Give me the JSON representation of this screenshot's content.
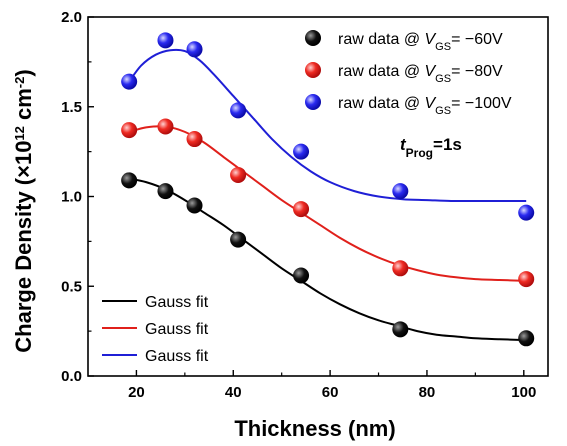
{
  "chart_data": {
    "type": "scatter",
    "title": "",
    "xlabel": "Thickness (nm)",
    "ylabel": "Charge Density (×10¹² cm⁻²)",
    "xlim": [
      10,
      105
    ],
    "ylim": [
      0.0,
      2.0
    ],
    "xticks": [
      "20",
      "40",
      "60",
      "80",
      "100"
    ],
    "yticks": [
      "0.0",
      "0.5",
      "1.0",
      "1.5",
      "2.0"
    ],
    "x": [
      18.5,
      26,
      32,
      41,
      54,
      74.5,
      100.5
    ],
    "series": [
      {
        "name": "raw data @ VGS= −60V",
        "kind": "scatter",
        "color": "#000000",
        "values": [
          1.09,
          1.03,
          0.95,
          0.76,
          0.56,
          0.26,
          0.21
        ]
      },
      {
        "name": "raw data @ VGS= −80V",
        "kind": "scatter",
        "color": "#e0201b",
        "values": [
          1.37,
          1.39,
          1.32,
          1.12,
          0.93,
          0.6,
          0.54
        ]
      },
      {
        "name": "raw data @ VGS= −100V",
        "kind": "scatter",
        "color": "#1f1fd6",
        "values": [
          1.64,
          1.87,
          1.82,
          1.48,
          1.25,
          1.03,
          0.91
        ]
      },
      {
        "name": "Gauss fit",
        "kind": "line",
        "color": "#000000",
        "x": [
          18.5,
          22,
          26,
          30,
          34,
          38,
          42,
          46,
          50,
          54,
          58,
          62,
          66,
          70,
          74,
          78,
          82,
          86,
          90,
          95,
          100.5
        ],
        "values": [
          1.1,
          1.08,
          1.04,
          0.98,
          0.91,
          0.84,
          0.76,
          0.68,
          0.6,
          0.53,
          0.46,
          0.4,
          0.35,
          0.31,
          0.28,
          0.25,
          0.23,
          0.22,
          0.21,
          0.205,
          0.2
        ]
      },
      {
        "name": "Gauss fit",
        "kind": "line",
        "color": "#e0201b",
        "x": [
          18.5,
          22,
          26,
          30,
          34,
          38,
          42,
          46,
          50,
          54,
          58,
          62,
          66,
          70,
          74,
          78,
          82,
          86,
          90,
          95,
          100.5
        ],
        "values": [
          1.36,
          1.385,
          1.39,
          1.36,
          1.3,
          1.22,
          1.14,
          1.06,
          0.98,
          0.91,
          0.84,
          0.77,
          0.71,
          0.66,
          0.62,
          0.59,
          0.565,
          0.55,
          0.54,
          0.535,
          0.53
        ]
      },
      {
        "name": "Gauss fit",
        "kind": "line",
        "color": "#1f1fd6",
        "x": [
          18.5,
          21,
          24,
          27,
          30,
          33,
          36,
          40,
          44,
          48,
          52,
          56,
          60,
          65,
          70,
          75,
          80,
          85,
          90,
          95,
          100.5
        ],
        "values": [
          1.64,
          1.73,
          1.79,
          1.815,
          1.81,
          1.76,
          1.68,
          1.56,
          1.44,
          1.32,
          1.22,
          1.14,
          1.08,
          1.03,
          1.0,
          0.985,
          0.98,
          0.975,
          0.975,
          0.975,
          0.975
        ]
      }
    ],
    "legend_top": {
      "placement": "top-right",
      "entries": [
        {
          "prefix": "raw data @ ",
          "var": "V",
          "sub": "GS",
          "suffix": "= −60V",
          "color": "#000000"
        },
        {
          "prefix": "raw data @ ",
          "var": "V",
          "sub": "GS",
          "suffix": "= −80V",
          "color": "#e0201b"
        },
        {
          "prefix": "raw data @ ",
          "var": "V",
          "sub": "GS",
          "suffix": "= −100V",
          "color": "#1f1fd6"
        }
      ]
    },
    "legend_bottom": {
      "placement": "bottom-left",
      "entries": [
        {
          "label": "Gauss fit",
          "color": "#000000"
        },
        {
          "label": "Gauss fit",
          "color": "#e0201b"
        },
        {
          "label": "Gauss fit",
          "color": "#1f1fd6"
        }
      ]
    },
    "annotation": {
      "var": "t",
      "sub": "Prog",
      "suffix": "=1s"
    }
  }
}
